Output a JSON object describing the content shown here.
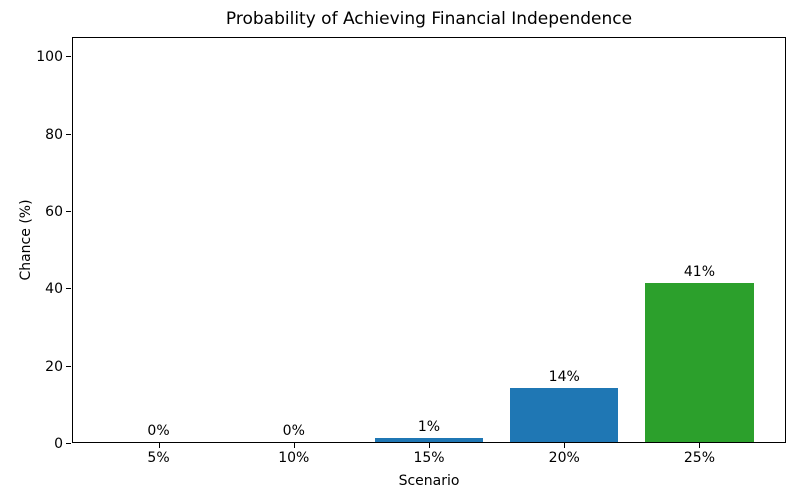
{
  "chart_data": {
    "type": "bar",
    "title": "Probability of Achieving Financial Independence",
    "xlabel": "Scenario",
    "ylabel": "Chance (%)",
    "categories": [
      "5%",
      "10%",
      "15%",
      "20%",
      "25%"
    ],
    "values": [
      0,
      0,
      1,
      14,
      41
    ],
    "bar_labels": [
      "0%",
      "0%",
      "1%",
      "14%",
      "41%"
    ],
    "bar_colors": [
      "#1f77b4",
      "#1f77b4",
      "#1f77b4",
      "#1f77b4",
      "#2ca02c"
    ],
    "bar_width_units": 0.8,
    "xlim": [
      -0.64,
      4.64
    ],
    "ylim": [
      0,
      105
    ],
    "yticks": [
      0,
      20,
      40,
      60,
      80,
      100
    ],
    "grid": false,
    "legend": false,
    "background_color": "#ffffff",
    "text_color": "#000000",
    "axis_color": "#000000"
  }
}
